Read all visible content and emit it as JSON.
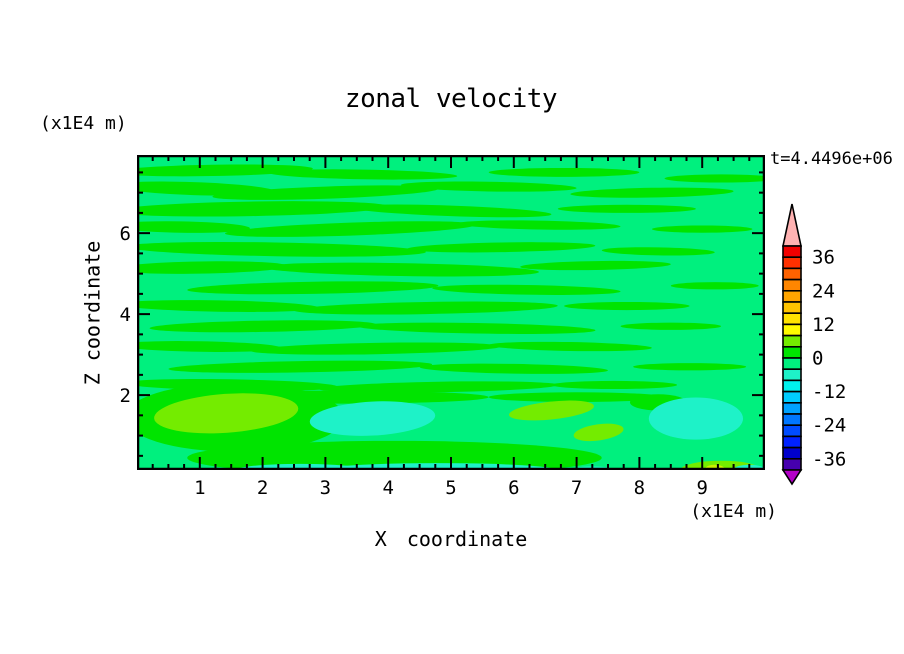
{
  "title": "zonal velocity",
  "time_label": "t=4.4496e+06",
  "x_axis": {
    "label": "X coordinate",
    "unit": "(x1E4 m)",
    "range": [
      0,
      10
    ],
    "major_ticks": [
      1,
      2,
      3,
      4,
      5,
      6,
      7,
      8,
      9
    ],
    "minor_step": 0.25
  },
  "z_axis": {
    "label": "Z coordinate",
    "unit": "(x1E4 m)",
    "range": [
      0.15,
      7.93
    ],
    "major_ticks": [
      2,
      4,
      6
    ],
    "minor_step": 0.5
  },
  "colorbar": {
    "band_max": 40,
    "band_min": -40,
    "band_step": 4,
    "label_values": [
      36,
      24,
      12,
      0,
      -12,
      -24,
      -36
    ],
    "colors_top_to_bottom": [
      "#F20000",
      "#FF3000",
      "#FF6200",
      "#FF8600",
      "#FFA500",
      "#FFC300",
      "#FFE200",
      "#FFFB00",
      "#74EC00",
      "#00E400",
      "#00F07E",
      "#1EF2C8",
      "#00F2EE",
      "#00CCFF",
      "#00A2FF",
      "#0077FF",
      "#004CFF",
      "#0022FF",
      "#0000CC",
      "#4600AE"
    ],
    "above_range_color": "#FFB2B2",
    "below_range_color": "#B400C8"
  },
  "chart_data": {
    "type": "filled-contour heatmap",
    "title": "zonal velocity",
    "xlabel": "X coordinate (x1E4 m)",
    "ylabel": "Z coordinate (x1E4 m)",
    "x_range": [
      0,
      10
    ],
    "z_range": [
      0.15,
      7.93
    ],
    "time_annotation": "t=4.4496e+06",
    "contour_interval": 4,
    "value_range_shown": [
      -40,
      40
    ],
    "legend_position": "right colorbar with out-of-range arrows",
    "field_summary": "Velocity near zero almost everywhere: wavy horizontal bands alternating between the -4..0 band (spring green) and 0..4 band (green) above z=2; below z=2 stronger anomalies: +4..8 patches (chartreuse) near x=1-2.5 and x=6.5-7.5 and bottom-right, -8..-4 patches (cyan-green) near x=3-4.5, x=8.5-9.5 and along the bottom edge",
    "palette": {
      "spring": "#00F07E",
      "green": "#00E400",
      "chartreuse": "#74EC00",
      "cyan": "#1EF2C8",
      "yellow_green": "#C8F200"
    },
    "background_band": "spring",
    "features": [
      {
        "x": 1.2,
        "z": 7.55,
        "rx": 1.6,
        "rz": 0.14,
        "rot": -1,
        "c": "green"
      },
      {
        "x": 3.6,
        "z": 7.45,
        "rx": 1.5,
        "rz": 0.12,
        "rot": 1,
        "c": "green"
      },
      {
        "x": 6.8,
        "z": 7.5,
        "rx": 1.2,
        "rz": 0.11,
        "rot": 0,
        "c": "green"
      },
      {
        "x": 9.3,
        "z": 7.35,
        "rx": 0.9,
        "rz": 0.1,
        "rot": 0,
        "c": "green"
      },
      {
        "x": 0.9,
        "z": 7.1,
        "rx": 1.3,
        "rz": 0.16,
        "rot": 2,
        "c": "green"
      },
      {
        "x": 3.0,
        "z": 7.0,
        "rx": 1.8,
        "rz": 0.15,
        "rot": -2,
        "c": "green"
      },
      {
        "x": 5.6,
        "z": 7.15,
        "rx": 1.4,
        "rz": 0.12,
        "rot": 1,
        "c": "green"
      },
      {
        "x": 8.2,
        "z": 7.0,
        "rx": 1.3,
        "rz": 0.12,
        "rot": -1,
        "c": "green"
      },
      {
        "x": 1.8,
        "z": 6.6,
        "rx": 2.2,
        "rz": 0.18,
        "rot": -1,
        "c": "green"
      },
      {
        "x": 5.0,
        "z": 6.55,
        "rx": 1.6,
        "rz": 0.13,
        "rot": 2,
        "c": "green"
      },
      {
        "x": 7.8,
        "z": 6.6,
        "rx": 1.1,
        "rz": 0.1,
        "rot": 0,
        "c": "green"
      },
      {
        "x": 0.7,
        "z": 6.15,
        "rx": 1.1,
        "rz": 0.14,
        "rot": 1,
        "c": "green"
      },
      {
        "x": 3.4,
        "z": 6.1,
        "rx": 2.0,
        "rz": 0.16,
        "rot": -2,
        "c": "green"
      },
      {
        "x": 6.4,
        "z": 6.2,
        "rx": 1.3,
        "rz": 0.11,
        "rot": 1,
        "c": "green"
      },
      {
        "x": 9.0,
        "z": 6.1,
        "rx": 0.8,
        "rz": 0.09,
        "rot": 0,
        "c": "green"
      },
      {
        "x": 2.2,
        "z": 5.6,
        "rx": 2.4,
        "rz": 0.17,
        "rot": 1,
        "c": "green"
      },
      {
        "x": 5.8,
        "z": 5.65,
        "rx": 1.5,
        "rz": 0.12,
        "rot": -1,
        "c": "green"
      },
      {
        "x": 8.3,
        "z": 5.55,
        "rx": 0.9,
        "rz": 0.1,
        "rot": 1,
        "c": "green"
      },
      {
        "x": 1.0,
        "z": 5.15,
        "rx": 1.4,
        "rz": 0.15,
        "rot": -1,
        "c": "green"
      },
      {
        "x": 4.2,
        "z": 5.1,
        "rx": 2.2,
        "rz": 0.16,
        "rot": 1,
        "c": "green"
      },
      {
        "x": 7.3,
        "z": 5.2,
        "rx": 1.2,
        "rz": 0.11,
        "rot": -1,
        "c": "green"
      },
      {
        "x": 2.8,
        "z": 4.65,
        "rx": 2.0,
        "rz": 0.15,
        "rot": -1,
        "c": "green"
      },
      {
        "x": 6.2,
        "z": 4.6,
        "rx": 1.5,
        "rz": 0.12,
        "rot": 1,
        "c": "green"
      },
      {
        "x": 9.2,
        "z": 4.7,
        "rx": 0.7,
        "rz": 0.09,
        "rot": 0,
        "c": "green"
      },
      {
        "x": 1.3,
        "z": 4.2,
        "rx": 1.6,
        "rz": 0.14,
        "rot": 1,
        "c": "green"
      },
      {
        "x": 4.6,
        "z": 4.15,
        "rx": 2.1,
        "rz": 0.15,
        "rot": -1,
        "c": "green"
      },
      {
        "x": 7.8,
        "z": 4.2,
        "rx": 1.0,
        "rz": 0.1,
        "rot": 0,
        "c": "green"
      },
      {
        "x": 2.0,
        "z": 3.7,
        "rx": 1.8,
        "rz": 0.14,
        "rot": -1,
        "c": "green"
      },
      {
        "x": 5.4,
        "z": 3.65,
        "rx": 1.9,
        "rz": 0.13,
        "rot": 1,
        "c": "green"
      },
      {
        "x": 8.5,
        "z": 3.7,
        "rx": 0.8,
        "rz": 0.09,
        "rot": 0,
        "c": "green"
      },
      {
        "x": 1.0,
        "z": 3.2,
        "rx": 1.3,
        "rz": 0.13,
        "rot": 1,
        "c": "green"
      },
      {
        "x": 3.8,
        "z": 3.15,
        "rx": 2.0,
        "rz": 0.14,
        "rot": -1,
        "c": "green"
      },
      {
        "x": 6.9,
        "z": 3.2,
        "rx": 1.3,
        "rz": 0.11,
        "rot": 1,
        "c": "green"
      },
      {
        "x": 2.6,
        "z": 2.7,
        "rx": 2.1,
        "rz": 0.14,
        "rot": -1,
        "c": "green"
      },
      {
        "x": 6.0,
        "z": 2.65,
        "rx": 1.5,
        "rz": 0.12,
        "rot": 1,
        "c": "green"
      },
      {
        "x": 8.8,
        "z": 2.7,
        "rx": 0.9,
        "rz": 0.09,
        "rot": 0,
        "c": "green"
      },
      {
        "x": 1.5,
        "z": 2.25,
        "rx": 1.7,
        "rz": 0.14,
        "rot": 1,
        "c": "green"
      },
      {
        "x": 4.8,
        "z": 2.2,
        "rx": 1.9,
        "rz": 0.13,
        "rot": -1,
        "c": "green"
      },
      {
        "x": 7.6,
        "z": 2.25,
        "rx": 1.0,
        "rz": 0.1,
        "rot": 0,
        "c": "green"
      },
      {
        "x": 3.2,
        "z": 1.95,
        "rx": 2.4,
        "rz": 0.16,
        "rot": 0,
        "c": "green"
      },
      {
        "x": 7.0,
        "z": 1.95,
        "rx": 1.4,
        "rz": 0.12,
        "rot": 0,
        "c": "green"
      },
      {
        "x": 1.55,
        "z": 1.45,
        "rx": 1.75,
        "rz": 0.85,
        "rot": 0,
        "c": "green"
      },
      {
        "x": 1.42,
        "z": 1.55,
        "rx": 1.15,
        "rz": 0.48,
        "rot": -4,
        "c": "chartreuse"
      },
      {
        "x": 3.75,
        "z": 1.42,
        "rx": 1.0,
        "rz": 0.42,
        "rot": -3,
        "c": "cyan"
      },
      {
        "x": 4.1,
        "z": 0.45,
        "rx": 3.3,
        "rz": 0.42,
        "rot": 0,
        "c": "green"
      },
      {
        "x": 4.8,
        "z": 0.14,
        "rx": 1.9,
        "rz": 0.18,
        "rot": 0,
        "c": "cyan"
      },
      {
        "x": 2.6,
        "z": 0.16,
        "rx": 1.0,
        "rz": 0.14,
        "rot": 0,
        "c": "cyan"
      },
      {
        "x": 0.8,
        "z": 0.1,
        "rx": 0.7,
        "rz": 0.1,
        "rot": 0,
        "c": "cyan"
      },
      {
        "x": 6.6,
        "z": 1.62,
        "rx": 0.68,
        "rz": 0.22,
        "rot": -6,
        "c": "chartreuse"
      },
      {
        "x": 7.35,
        "z": 1.08,
        "rx": 0.4,
        "rz": 0.2,
        "rot": -8,
        "c": "chartreuse"
      },
      {
        "x": 8.3,
        "z": 1.82,
        "rx": 0.45,
        "rz": 0.2,
        "rot": 0,
        "c": "green"
      },
      {
        "x": 8.9,
        "z": 1.42,
        "rx": 0.75,
        "rz": 0.52,
        "rot": 0,
        "c": "cyan"
      },
      {
        "x": 9.3,
        "z": 0.14,
        "rx": 0.65,
        "rz": 0.24,
        "rot": 0,
        "c": "chartreuse"
      },
      {
        "x": 9.2,
        "z": 0.18,
        "rx": 0.15,
        "rz": 0.1,
        "rot": 0,
        "c": "yellow_green"
      },
      {
        "x": 7.25,
        "z": 0.1,
        "rx": 0.4,
        "rz": 0.14,
        "rot": 0,
        "c": "cyan"
      },
      {
        "x": 8.05,
        "z": 0.1,
        "rx": 0.22,
        "rz": 0.1,
        "rot": 0,
        "c": "chartreuse"
      },
      {
        "x": 9.75,
        "z": 0.16,
        "rx": 0.25,
        "rz": 0.12,
        "rot": 0,
        "c": "cyan"
      }
    ]
  }
}
